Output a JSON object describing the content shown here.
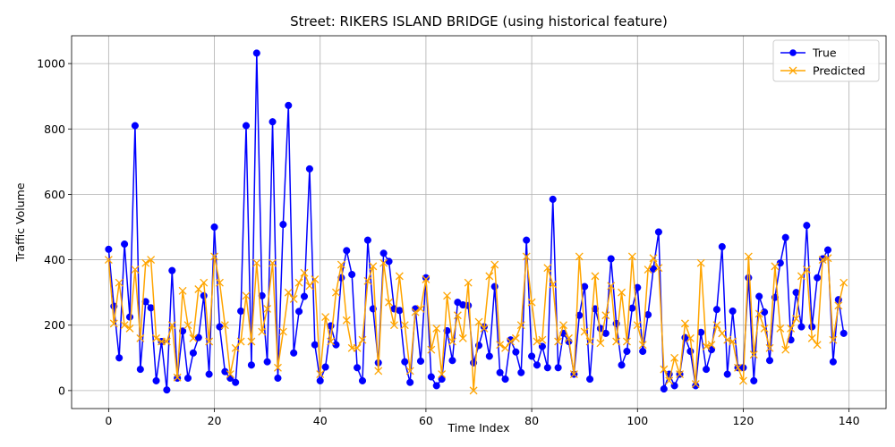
{
  "chart_data": {
    "type": "line",
    "title": "Street: RIKERS ISLAND BRIDGE (using historical feature)",
    "xlabel": "Time Index",
    "ylabel": "Traffic Volume",
    "xlim": [
      -7,
      147
    ],
    "ylim": [
      -55,
      1085
    ],
    "x_ticks": [
      0,
      20,
      40,
      60,
      80,
      100,
      120,
      140
    ],
    "y_ticks": [
      0,
      200,
      400,
      600,
      800,
      1000
    ],
    "grid": true,
    "legend_position": "top-right",
    "series": [
      {
        "name": "True",
        "color": "#0000ff",
        "marker": "circle",
        "values": [
          432,
          258,
          100,
          448,
          225,
          810,
          65,
          272,
          253,
          30,
          150,
          2,
          367,
          38,
          182,
          38,
          115,
          162,
          290,
          50,
          500,
          195,
          58,
          38,
          25,
          243,
          810,
          78,
          1032,
          290,
          88,
          822,
          38,
          508,
          872,
          115,
          242,
          288,
          678,
          140,
          30,
          72,
          198,
          140,
          345,
          428,
          355,
          70,
          30,
          460,
          250,
          85,
          420,
          395,
          250,
          245,
          88,
          25,
          250,
          90,
          345,
          42,
          15,
          35,
          183,
          92,
          270,
          262,
          260,
          85,
          138,
          195,
          105,
          318,
          55,
          35,
          155,
          118,
          55,
          460,
          105,
          78,
          135,
          70,
          585,
          70,
          175,
          150,
          50,
          230,
          318,
          35,
          250,
          190,
          175,
          403,
          205,
          78,
          120,
          252,
          315,
          120,
          232,
          372,
          485,
          5,
          50,
          15,
          50,
          162,
          120,
          15,
          178,
          65,
          125,
          248,
          440,
          50,
          243,
          70,
          70,
          345,
          30,
          288,
          240,
          92,
          285,
          390,
          468,
          155,
          300,
          195,
          505,
          195,
          345,
          403,
          430,
          88,
          278,
          175
        ]
      },
      {
        "name": "Predicted",
        "color": "#ffa500",
        "marker": "x",
        "values": [
          400,
          205,
          330,
          200,
          190,
          370,
          160,
          390,
          400,
          160,
          150,
          150,
          200,
          40,
          305,
          200,
          160,
          310,
          330,
          150,
          410,
          330,
          200,
          50,
          130,
          150,
          290,
          150,
          390,
          180,
          250,
          390,
          70,
          180,
          300,
          280,
          330,
          360,
          320,
          340,
          50,
          225,
          150,
          300,
          385,
          215,
          130,
          130,
          155,
          335,
          380,
          60,
          390,
          270,
          200,
          350,
          200,
          60,
          240,
          250,
          340,
          125,
          190,
          50,
          290,
          150,
          230,
          160,
          330,
          0,
          210,
          190,
          350,
          385,
          140,
          130,
          150,
          160,
          200,
          410,
          270,
          150,
          155,
          375,
          325,
          150,
          200,
          160,
          50,
          410,
          180,
          150,
          350,
          145,
          230,
          320,
          150,
          300,
          150,
          410,
          200,
          140,
          370,
          405,
          375,
          65,
          30,
          100,
          50,
          205,
          160,
          20,
          390,
          135,
          140,
          200,
          175,
          155,
          150,
          70,
          30,
          410,
          110,
          235,
          190,
          130,
          380,
          190,
          125,
          190,
          220,
          350,
          370,
          160,
          140,
          400,
          405,
          155,
          260,
          330
        ]
      }
    ]
  }
}
